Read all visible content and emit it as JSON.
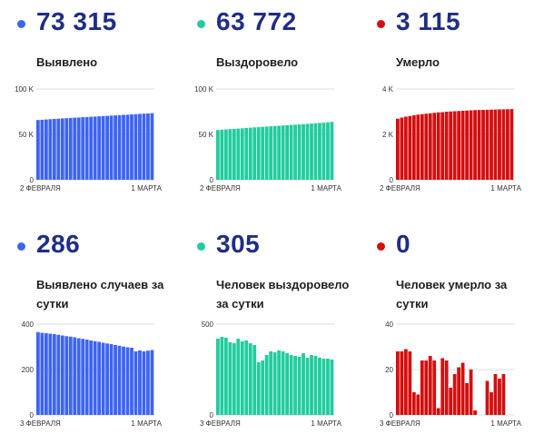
{
  "colors": {
    "detected": "#3d64f2",
    "recovered": "#22cc9f",
    "died": "#d30e0f",
    "number": "#1f2d86"
  },
  "charts": [
    {
      "number": "73 315",
      "label": "Выявлено",
      "chart_data": {
        "type": "bar",
        "ylim": [
          0,
          100000
        ],
        "yticks": [
          "0",
          "50 K",
          "100 K"
        ],
        "ytick_values": [
          0,
          50000,
          100000
        ],
        "xtick_labels": [
          "2 ФЕВРАЛЯ",
          "1 МАРТА"
        ],
        "values": [
          65800,
          66100,
          66400,
          66700,
          67000,
          67300,
          67600,
          67800,
          68100,
          68400,
          68600,
          68900,
          69100,
          69400,
          69600,
          69900,
          70200,
          70400,
          70700,
          70900,
          71200,
          71500,
          71700,
          72000,
          72300,
          72600,
          72800,
          73000,
          73315
        ]
      }
    },
    {
      "number": "63 772",
      "label": "Выздоровело",
      "chart_data": {
        "type": "bar",
        "ylim": [
          0,
          100000
        ],
        "yticks": [
          "0",
          "50 K",
          "100 K"
        ],
        "ytick_values": [
          0,
          50000,
          100000
        ],
        "xtick_labels": [
          "2 ФЕВРАЛЯ",
          "1 МАРТА"
        ],
        "values": [
          54800,
          55200,
          55500,
          55800,
          56100,
          56400,
          56700,
          57100,
          57400,
          57700,
          58000,
          58300,
          58600,
          58900,
          59200,
          59500,
          59800,
          60100,
          60400,
          60700,
          61000,
          61300,
          61600,
          61900,
          62300,
          62600,
          62900,
          63300,
          63772
        ]
      }
    },
    {
      "number": "3 115",
      "label": "Умерло",
      "chart_data": {
        "type": "bar",
        "ylim": [
          0,
          4000
        ],
        "yticks": [
          "0",
          "2 K",
          "4 K"
        ],
        "ytick_values": [
          0,
          2000,
          4000
        ],
        "xtick_labels": [
          "2 ФЕВРАЛЯ",
          "1 МАРТА"
        ],
        "values": [
          2690,
          2740,
          2780,
          2810,
          2840,
          2870,
          2890,
          2910,
          2930,
          2950,
          2970,
          2980,
          3000,
          3010,
          3020,
          3030,
          3040,
          3050,
          3060,
          3070,
          3075,
          3080,
          3085,
          3090,
          3095,
          3100,
          3105,
          3110,
          3115
        ]
      }
    },
    {
      "number": "286",
      "label": "Выявлено случаев за сутки",
      "chart_data": {
        "type": "bar",
        "ylim": [
          0,
          400
        ],
        "yticks": [
          "0",
          "200",
          "400"
        ],
        "ytick_values": [
          0,
          200,
          400
        ],
        "xtick_labels": [
          "3 ФЕВРАЛЯ",
          "1 МАРТА"
        ],
        "values": [
          365,
          362,
          360,
          358,
          356,
          353,
          350,
          347,
          345,
          342,
          338,
          335,
          332,
          328,
          325,
          322,
          318,
          315,
          312,
          308,
          305,
          301,
          298,
          296,
          280,
          284,
          280,
          283,
          286
        ]
      }
    },
    {
      "number": "305",
      "label": "Человек выздоровело за сутки",
      "chart_data": {
        "type": "bar",
        "ylim": [
          0,
          500
        ],
        "yticks": [
          "0",
          "500"
        ],
        "ytick_values": [
          0,
          500
        ],
        "xtick_labels": [
          "3 ФЕВРАЛЯ",
          "1 МАРТА"
        ],
        "values": [
          420,
          430,
          425,
          400,
          395,
          420,
          405,
          410,
          395,
          385,
          290,
          300,
          330,
          350,
          345,
          355,
          350,
          340,
          330,
          325,
          320,
          340,
          315,
          330,
          325,
          315,
          310,
          310,
          305
        ]
      }
    },
    {
      "number": "0",
      "label": "Человек умерло за сутки",
      "chart_data": {
        "type": "bar",
        "ylim": [
          0,
          40
        ],
        "yticks": [
          "0",
          "20",
          "40"
        ],
        "ytick_values": [
          0,
          20,
          40
        ],
        "xtick_labels": [
          "3 ФЕВРАЛЯ",
          "1 МАРТА"
        ],
        "values": [
          28,
          28,
          29,
          28,
          10,
          9,
          24,
          24,
          26,
          24,
          3,
          25,
          24,
          12,
          18,
          21,
          23,
          14,
          20,
          2,
          0,
          0,
          15,
          10,
          18,
          16,
          18,
          0,
          0
        ]
      }
    }
  ]
}
